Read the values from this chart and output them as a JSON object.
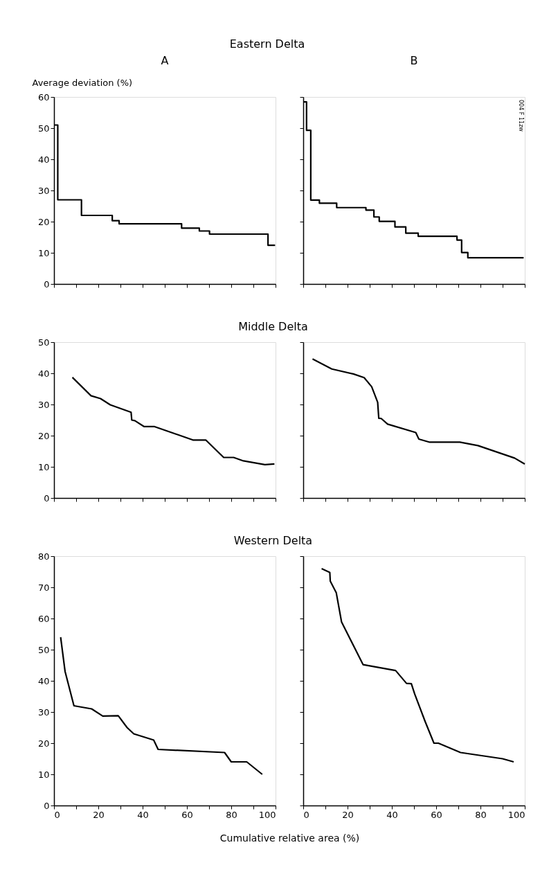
{
  "chart_data": [
    {
      "type": "step",
      "title": "Eastern Delta",
      "ylabel": "Average deviation (%)",
      "annotations": [
        "A"
      ],
      "xlim": [
        0,
        100
      ],
      "ylim": [
        0,
        60
      ],
      "xticks": [
        0,
        {
          "value": 10,
          "label": null
        },
        20,
        {
          "value": 30,
          "label": null
        },
        40,
        {
          "value": 50,
          "label": null
        },
        60,
        {
          "value": 70,
          "label": null
        },
        80,
        {
          "value": 90,
          "label": null
        },
        100
      ],
      "yticks": [
        0,
        10,
        20,
        30,
        40,
        50,
        60
      ],
      "tick_labels": "y",
      "series": [
        {
          "color": "#000000",
          "x": [
            0.3,
            1.7,
            12.4,
            26.3,
            29.4,
            57.6,
            65.6,
            70.2,
            96.6,
            99.8
          ],
          "values": [
            51,
            27,
            22,
            20.3,
            19.3,
            17.9,
            17,
            16,
            12.4,
            12.4
          ]
        }
      ]
    },
    {
      "type": "step",
      "annotations": [
        "B",
        "004 F 11zw"
      ],
      "xlim": [
        0,
        100
      ],
      "ylim": [
        0,
        60
      ],
      "xticks": [
        0,
        {
          "value": 10,
          "label": null
        },
        20,
        {
          "value": 30,
          "label": null
        },
        40,
        {
          "value": 50,
          "label": null
        },
        60,
        {
          "value": 70,
          "label": null
        },
        80,
        {
          "value": 90,
          "label": null
        },
        100
      ],
      "yticks": [
        0,
        10,
        20,
        30,
        40,
        50,
        60
      ],
      "tick_labels": false,
      "series": [
        {
          "color": "#000000",
          "x": [
            0.3,
            1.5,
            3.4,
            7.3,
            15.1,
            28.3,
            31.9,
            34.3,
            41.4,
            46.3,
            51.9,
            69.4,
            71.5,
            74.3,
            99.5
          ],
          "values": [
            58.4,
            49.3,
            26.9,
            25.9,
            24.5,
            23.7,
            21.5,
            20.1,
            18.3,
            16.3,
            15.3,
            14.1,
            10.1,
            8.4,
            8.4
          ]
        }
      ]
    },
    {
      "type": "line",
      "title": "Middle Delta",
      "xlim": [
        0,
        100
      ],
      "ylim": [
        0,
        50
      ],
      "xticks": [
        0,
        {
          "value": 10,
          "label": null
        },
        20,
        {
          "value": 30,
          "label": null
        },
        40,
        {
          "value": 50,
          "label": null
        },
        60,
        {
          "value": 70,
          "label": null
        },
        80,
        {
          "value": 90,
          "label": null
        },
        100
      ],
      "yticks": [
        0,
        10,
        20,
        30,
        40,
        50
      ],
      "tick_labels": "y",
      "series": [
        {
          "color": "#000000",
          "x": [
            8.3,
            16.7,
            21.0,
            25.4,
            34.8,
            35.1,
            36.5,
            40.7,
            45.4,
            62.7,
            68.5,
            76.6,
            81.1,
            85.5,
            95.2,
            99.5
          ],
          "values": [
            38.7,
            32.8,
            31.9,
            29.9,
            27.5,
            25.0,
            24.8,
            22.9,
            22.9,
            18.6,
            18.6,
            13.0,
            13.0,
            11.9,
            10.7,
            10.9
          ]
        }
      ]
    },
    {
      "type": "line",
      "xlim": [
        0,
        100
      ],
      "ylim": [
        0,
        50
      ],
      "xticks": [
        0,
        {
          "value": 10,
          "label": null
        },
        20,
        {
          "value": 30,
          "label": null
        },
        40,
        {
          "value": 50,
          "label": null
        },
        60,
        {
          "value": 70,
          "label": null
        },
        80,
        {
          "value": 90,
          "label": null
        },
        100
      ],
      "yticks": [
        0,
        10,
        20,
        30,
        40,
        50
      ],
      "tick_labels": false,
      "series": [
        {
          "color": "#000000",
          "x": [
            4.2,
            12.9,
            22.6,
            27.5,
            30.9,
            33.6,
            34.1,
            35.2,
            38.1,
            50.8,
            52.2,
            57.1,
            70.7,
            78.9,
            95.4,
            100
          ],
          "values": [
            44.6,
            41.4,
            39.8,
            38.6,
            35.7,
            30.7,
            25.6,
            25.5,
            23.7,
            21.0,
            18.9,
            17.9,
            17.9,
            16.8,
            12.8,
            10.9
          ]
        }
      ]
    },
    {
      "type": "line",
      "title": "Western Delta",
      "xlabel": "Cumulative relative area (%)",
      "xlim": [
        0,
        100
      ],
      "ylim": [
        0,
        80
      ],
      "xticks": [
        0,
        {
          "value": 10,
          "label": null
        },
        20,
        {
          "value": 30,
          "label": null
        },
        40,
        {
          "value": 50,
          "label": null
        },
        60,
        {
          "value": 70,
          "label": null
        },
        80,
        {
          "value": 90,
          "label": null
        },
        100
      ],
      "yticks": [
        0,
        10,
        20,
        30,
        40,
        50,
        60,
        70,
        80
      ],
      "series": [
        {
          "color": "#000000",
          "x": [
            3,
            5,
            9,
            17,
            22,
            29,
            33,
            36,
            45,
            47,
            77,
            80,
            87,
            94
          ],
          "values": [
            54,
            43,
            32,
            31,
            28.7,
            28.8,
            25,
            23,
            21,
            18,
            17,
            14,
            14,
            10
          ]
        }
      ]
    },
    {
      "type": "line",
      "xlim": [
        0,
        100
      ],
      "ylim": [
        0,
        80
      ],
      "xticks": [
        0,
        {
          "value": 10,
          "label": null
        },
        20,
        {
          "value": 30,
          "label": null
        },
        40,
        {
          "value": 50,
          "label": null
        },
        60,
        {
          "value": 70,
          "label": null
        },
        80,
        {
          "value": 90,
          "label": null
        },
        100
      ],
      "yticks": [
        0,
        10,
        20,
        30,
        40,
        50,
        60,
        70,
        80
      ],
      "tick_labels": "x",
      "series": [
        {
          "color": "#000000",
          "x": [
            8.3,
            12.0,
            12.2,
            14.9,
            17.3,
            27.0,
            41.7,
            46.6,
            48.8,
            50.3,
            55,
            59,
            61,
            71,
            90,
            95
          ],
          "values": [
            76.0,
            74.8,
            72.0,
            68.3,
            58.9,
            45.2,
            43.3,
            39.2,
            39.1,
            35.8,
            27,
            20,
            20,
            17,
            15,
            14
          ]
        }
      ]
    }
  ]
}
